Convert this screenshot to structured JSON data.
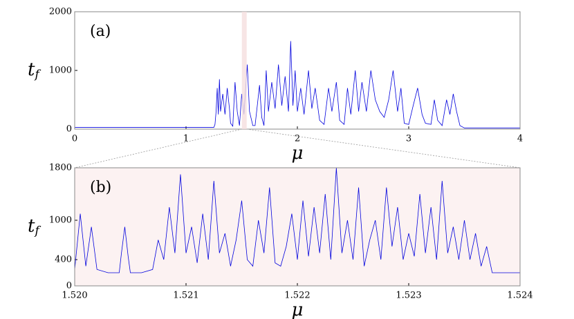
{
  "chart_data": [
    {
      "type": "line",
      "label": "(a)",
      "xlabel": "μ",
      "ylabel": "t",
      "ylabel_subscript": "f",
      "xlim": [
        0,
        4
      ],
      "ylim": [
        0,
        2000
      ],
      "xticks": [
        0,
        1,
        2,
        3,
        4
      ],
      "yticks": [
        0,
        1000,
        2000
      ],
      "highlight_color": "#f5dede",
      "background": "#ffffff",
      "series": [
        {
          "name": null,
          "color": "#0000dd",
          "x": [
            0,
            1.25,
            1.26,
            1.27,
            1.28,
            1.29,
            1.3,
            1.31,
            1.33,
            1.35,
            1.37,
            1.39,
            1.4,
            1.42,
            1.44,
            1.46,
            1.48,
            1.5,
            1.52,
            1.55,
            1.57,
            1.6,
            1.62,
            1.64,
            1.66,
            1.68,
            1.7,
            1.72,
            1.74,
            1.77,
            1.8,
            1.83,
            1.86,
            1.89,
            1.92,
            1.94,
            1.96,
            1.98,
            2.0,
            2.03,
            2.06,
            2.1,
            2.13,
            2.16,
            2.2,
            2.24,
            2.28,
            2.31,
            2.35,
            2.38,
            2.42,
            2.45,
            2.48,
            2.52,
            2.55,
            2.58,
            2.62,
            2.66,
            2.7,
            2.74,
            2.78,
            2.82,
            2.86,
            2.9,
            2.93,
            2.96,
            3.0,
            3.04,
            3.08,
            3.12,
            3.15,
            3.2,
            3.23,
            3.26,
            3.3,
            3.34,
            3.37,
            3.4,
            3.43,
            3.46,
            3.5,
            4.0
          ],
          "values": [
            30,
            30,
            80,
            300,
            700,
            250,
            850,
            300,
            600,
            250,
            700,
            350,
            100,
            50,
            800,
            300,
            60,
            600,
            250,
            1100,
            300,
            60,
            60,
            400,
            750,
            200,
            60,
            1000,
            300,
            800,
            350,
            1100,
            400,
            900,
            300,
            1500,
            400,
            1000,
            300,
            700,
            250,
            1000,
            350,
            700,
            150,
            80,
            700,
            300,
            800,
            150,
            80,
            700,
            250,
            1000,
            300,
            800,
            300,
            1000,
            500,
            300,
            200,
            500,
            1000,
            300,
            700,
            100,
            80,
            400,
            700,
            250,
            100,
            80,
            500,
            150,
            60,
            500,
            250,
            600,
            300,
            60,
            20,
            20
          ]
        }
      ]
    },
    {
      "type": "line",
      "label": "(b)",
      "xlabel": "μ",
      "ylabel": "t",
      "ylabel_subscript": "f",
      "xlim": [
        1.52,
        1.524
      ],
      "ylim": [
        0,
        1800
      ],
      "xticks": [
        {
          "value": 1.52,
          "label": "1.520"
        },
        {
          "value": 1.521,
          "label": "1.521"
        },
        {
          "value": 1.522,
          "label": "1.522"
        },
        {
          "value": 1.523,
          "label": "1.523"
        },
        {
          "value": 1.524,
          "label": "1.524"
        }
      ],
      "yticks": [
        0,
        400,
        1000,
        1800
      ],
      "background": "#fcf2f2",
      "series": [
        {
          "name": null,
          "color": "#0000dd",
          "x": [
            1.52,
            1.52005,
            1.5201,
            1.52015,
            1.5202,
            1.5203,
            1.5204,
            1.52042,
            1.52045,
            1.52048,
            1.5205,
            1.5206,
            1.5207,
            1.52075,
            1.5208,
            1.52085,
            1.5209,
            1.52095,
            1.521,
            1.52105,
            1.5211,
            1.52115,
            1.5212,
            1.52125,
            1.5213,
            1.52135,
            1.5214,
            1.52145,
            1.5215,
            1.52155,
            1.5216,
            1.52165,
            1.5217,
            1.52175,
            1.5218,
            1.52185,
            1.5219,
            1.52195,
            1.522,
            1.52205,
            1.5221,
            1.52215,
            1.5222,
            1.52225,
            1.5223,
            1.52235,
            1.5224,
            1.52245,
            1.5225,
            1.52255,
            1.5226,
            1.52265,
            1.5227,
            1.52275,
            1.5228,
            1.52285,
            1.5229,
            1.52295,
            1.523,
            1.52305,
            1.5231,
            1.52315,
            1.5232,
            1.52325,
            1.5233,
            1.52335,
            1.5234,
            1.52345,
            1.5235,
            1.52355,
            1.5236,
            1.52365,
            1.5237,
            1.52375,
            1.524
          ],
          "values": [
            250,
            1100,
            300,
            900,
            250,
            200,
            200,
            500,
            900,
            450,
            200,
            200,
            250,
            700,
            400,
            1200,
            500,
            1700,
            500,
            900,
            350,
            1100,
            400,
            1600,
            500,
            800,
            300,
            700,
            1300,
            400,
            300,
            1000,
            500,
            1500,
            350,
            300,
            600,
            1100,
            400,
            1300,
            450,
            1200,
            500,
            1400,
            400,
            1800,
            500,
            1000,
            400,
            1500,
            300,
            700,
            1000,
            400,
            1500,
            600,
            1200,
            400,
            800,
            450,
            1400,
            500,
            1200,
            400,
            1600,
            500,
            900,
            400,
            1000,
            400,
            800,
            300,
            600,
            200,
            200
          ]
        }
      ]
    }
  ]
}
